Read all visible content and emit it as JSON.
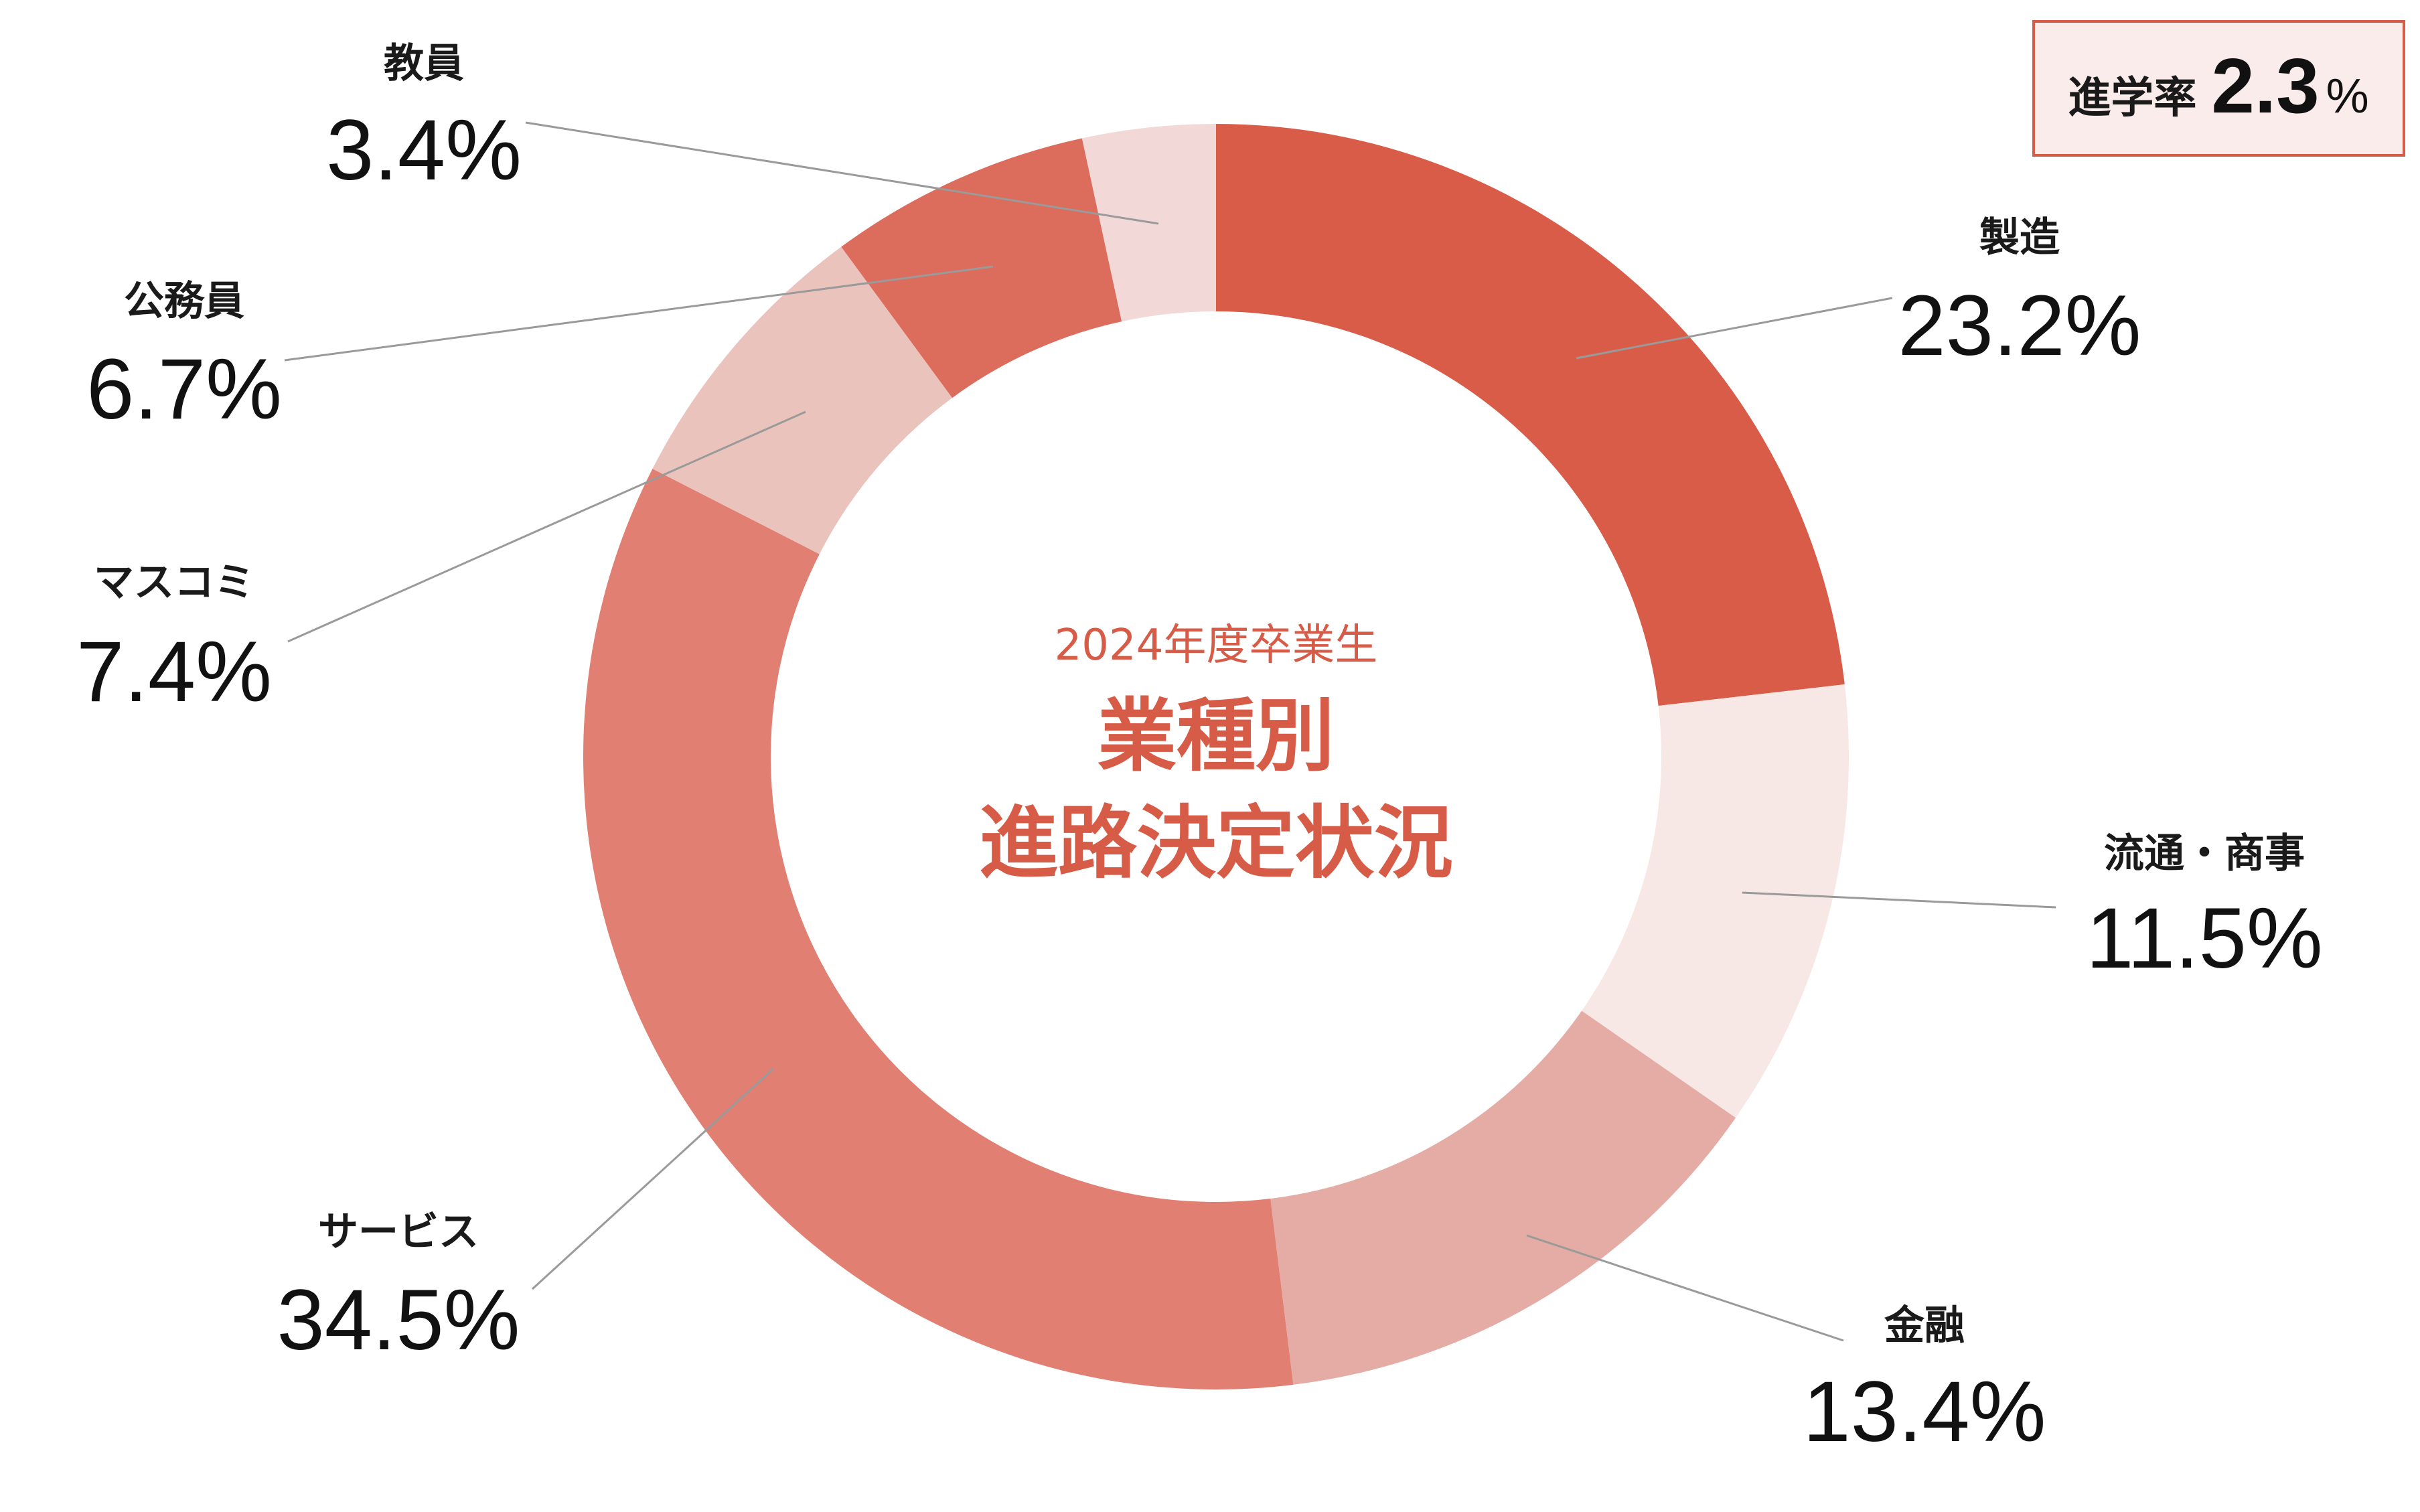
{
  "chart_data": {
    "type": "pie",
    "center": {
      "subtitle": "2024年度卒業生",
      "title_line1": "業種別",
      "title_line2": "進路決定状況"
    },
    "slices": [
      {
        "label": "製造",
        "value": 23.2,
        "display": "23.2%",
        "color": "#d95c48"
      },
      {
        "label": "流通・商事",
        "value": 11.5,
        "display": "11.5%",
        "color": "#f8e8e5"
      },
      {
        "label": "金融",
        "value": 13.4,
        "display": "13.4%",
        "color": "#e4aca5"
      },
      {
        "label": "サービス",
        "value": 34.5,
        "display": "34.5%",
        "color": "#e07f72"
      },
      {
        "label": "マスコミ",
        "value": 7.4,
        "display": "7.4%",
        "color": "#ebc3bd"
      },
      {
        "label": "公務員",
        "value": 6.7,
        "display": "6.7%",
        "color": "#dc6c5c"
      },
      {
        "label": "教員",
        "value": 3.4,
        "display": "3.4%",
        "color": "#f2d8d6"
      }
    ],
    "note": {
      "label": "進学率",
      "value": "2.3",
      "unit": "%"
    }
  }
}
